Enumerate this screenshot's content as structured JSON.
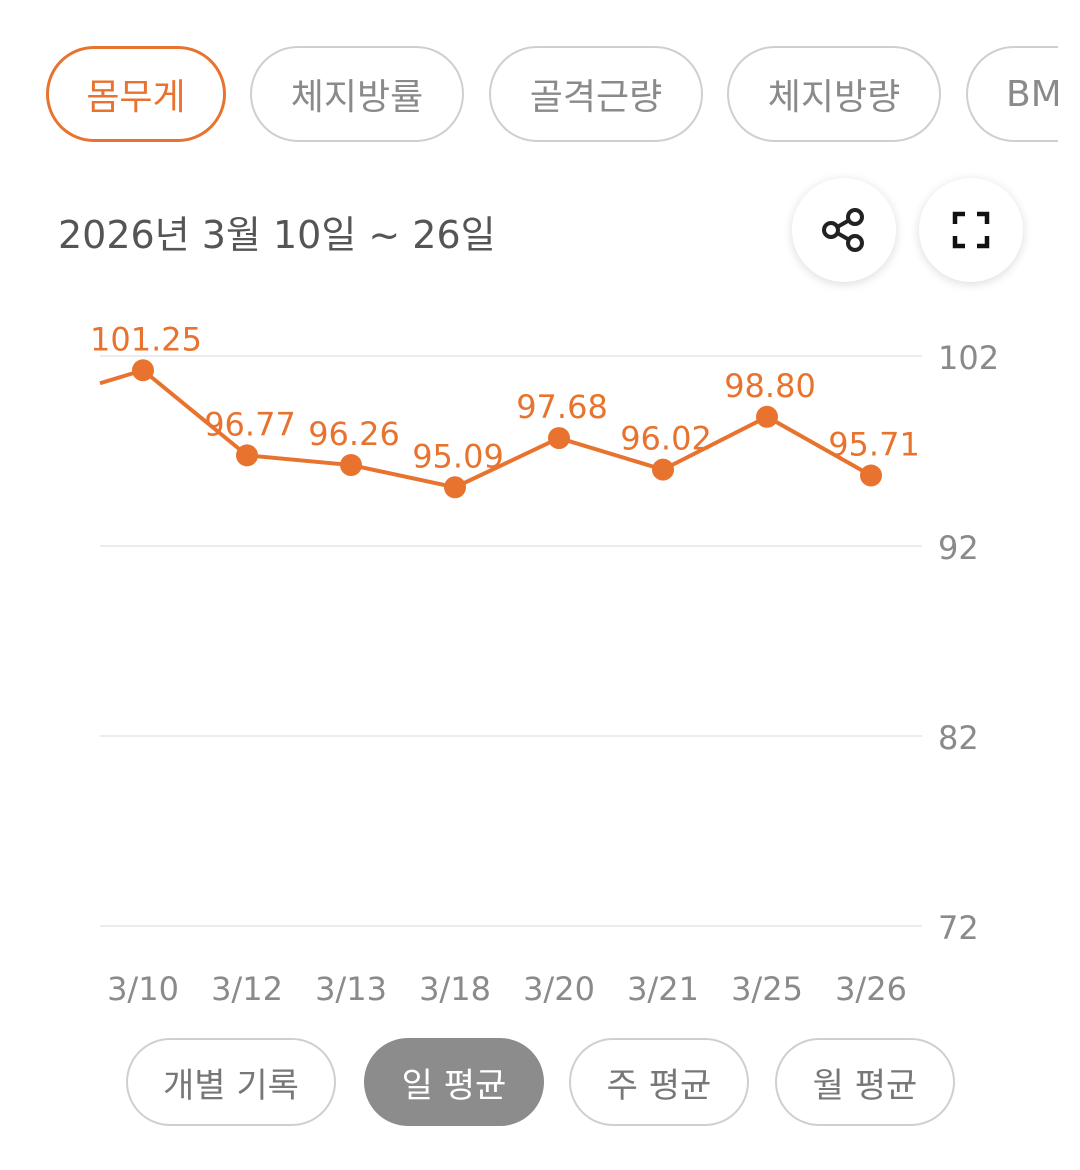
{
  "metric_tabs": [
    {
      "label": "몸무게",
      "active": true
    },
    {
      "label": "체지방률",
      "active": false
    },
    {
      "label": "골격근량",
      "active": false
    },
    {
      "label": "체지방량",
      "active": false
    },
    {
      "label": "BMI",
      "active": false
    }
  ],
  "date_range": "2026년 3월 10일 ~ 26일",
  "icons": {
    "share": "share-icon",
    "fullscreen": "fullscreen-icon"
  },
  "colors": {
    "accent": "#e8732e",
    "active_segment": "#8c8c8c"
  },
  "chart_data": {
    "type": "line",
    "categories": [
      "3/10",
      "3/12",
      "3/13",
      "3/18",
      "3/20",
      "3/21",
      "3/25",
      "3/26"
    ],
    "series": [
      {
        "values": [
          101.25,
          96.77,
          96.26,
          95.09,
          97.68,
          96.02,
          98.8,
          95.71
        ],
        "labels": [
          "101.25",
          "96.77",
          "96.26",
          "95.09",
          "97.68",
          "96.02",
          "98.80",
          "95.71"
        ]
      }
    ],
    "y_ticks": [
      "102",
      "92",
      "82",
      "72"
    ],
    "ylim": [
      72,
      102
    ],
    "y_axis_position": "right",
    "grid": true,
    "line_enters_from_left": true
  },
  "aggregation_segments": [
    {
      "label": "개별 기록",
      "active": false
    },
    {
      "label": "일 평균",
      "active": true
    },
    {
      "label": "주 평균",
      "active": false
    },
    {
      "label": "월 평균",
      "active": false
    }
  ]
}
